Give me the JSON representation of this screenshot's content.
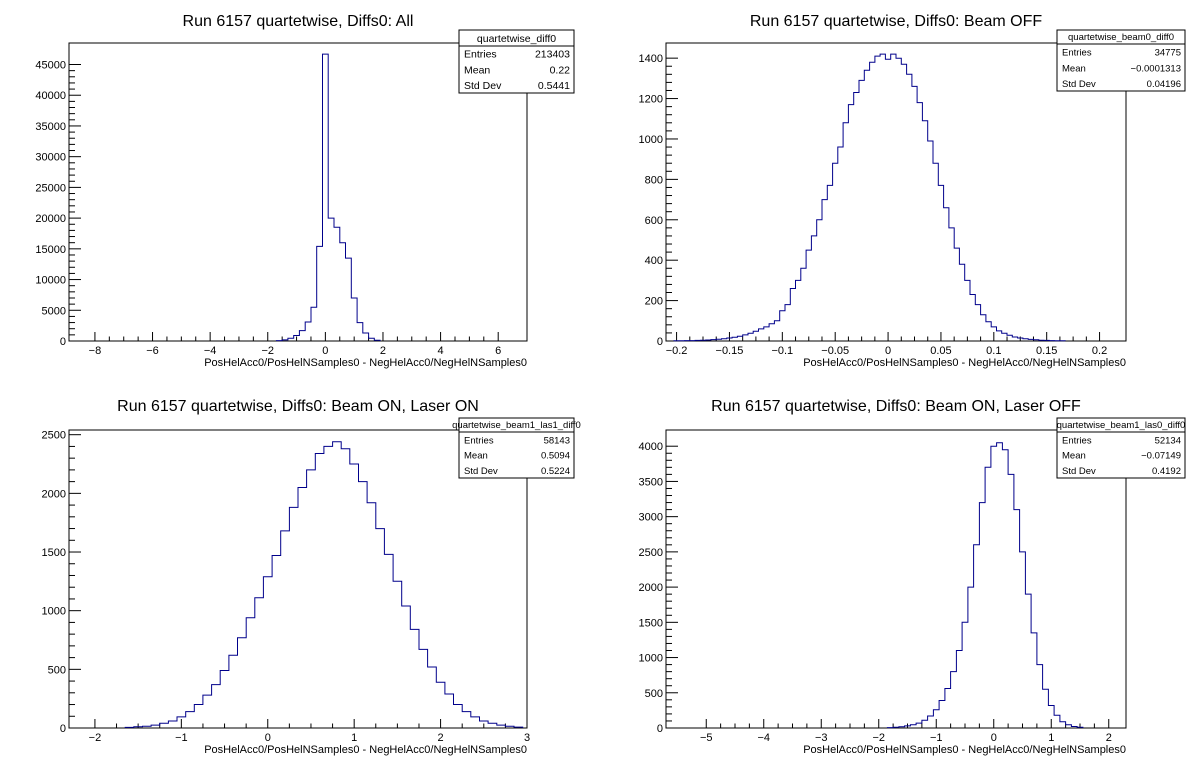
{
  "chart_data": [
    {
      "type": "histogram",
      "title": "Run 6157 quartetwise, Diffs0: All",
      "xlabel": "PosHelAcc0/PosHelNSamples0 - NegHelAcc0/NegHelNSamples0",
      "ylabel": "",
      "xlim": [
        -8.9,
        7.0
      ],
      "ylim": [
        0,
        48500
      ],
      "xticks": [
        -8,
        -6,
        -4,
        -2,
        0,
        2,
        4,
        6
      ],
      "yticks": [
        0,
        5000,
        10000,
        15000,
        20000,
        25000,
        30000,
        35000,
        40000,
        45000
      ],
      "stats": {
        "name": "quartetwise_diff0",
        "entries": "213403",
        "mean": "0.22",
        "std_dev": "0.5441"
      },
      "bins": [
        [
          -1.6,
          60
        ],
        [
          -1.4,
          180
        ],
        [
          -1.2,
          450
        ],
        [
          -1.0,
          900
        ],
        [
          -0.8,
          1700
        ],
        [
          -0.6,
          3100
        ],
        [
          -0.4,
          5500
        ],
        [
          -0.2,
          15400
        ],
        [
          0.0,
          46700
        ],
        [
          0.2,
          20000
        ],
        [
          0.4,
          18500
        ],
        [
          0.6,
          16000
        ],
        [
          0.8,
          13500
        ],
        [
          1.0,
          7000
        ],
        [
          1.2,
          3000
        ],
        [
          1.4,
          1300
        ],
        [
          1.6,
          450
        ],
        [
          1.8,
          120
        ]
      ],
      "bin_width": 0.2
    },
    {
      "type": "histogram",
      "title": "Run 6157 quartetwise, Diffs0: Beam OFF",
      "xlabel": "PosHelAcc0/PosHelNSamples0 - NegHelAcc0/NegHelNSamples0",
      "ylabel": "",
      "xlim": [
        -0.21,
        0.225
      ],
      "ylim": [
        0,
        1475
      ],
      "xticks": [
        -0.2,
        -0.15,
        -0.1,
        -0.05,
        0,
        0.05,
        0.1,
        0.15,
        0.2
      ],
      "yticks": [
        0,
        200,
        400,
        600,
        800,
        1000,
        1200,
        1400
      ],
      "stats": {
        "name": "quartetwise_beam0_diff0",
        "entries": "34775",
        "mean": "−0.0001313",
        "std_dev": "0.04196"
      },
      "bins": [
        [
          -0.2,
          1
        ],
        [
          -0.195,
          1
        ],
        [
          -0.19,
          2
        ],
        [
          -0.185,
          2
        ],
        [
          -0.18,
          3
        ],
        [
          -0.175,
          4
        ],
        [
          -0.17,
          5
        ],
        [
          -0.165,
          7
        ],
        [
          -0.16,
          9
        ],
        [
          -0.155,
          11
        ],
        [
          -0.15,
          15
        ],
        [
          -0.145,
          19
        ],
        [
          -0.14,
          24
        ],
        [
          -0.135,
          30
        ],
        [
          -0.13,
          38
        ],
        [
          -0.125,
          48
        ],
        [
          -0.12,
          60
        ],
        [
          -0.115,
          70
        ],
        [
          -0.11,
          85
        ],
        [
          -0.105,
          100
        ],
        [
          -0.1,
          150
        ],
        [
          -0.095,
          180
        ],
        [
          -0.09,
          260
        ],
        [
          -0.085,
          300
        ],
        [
          -0.08,
          360
        ],
        [
          -0.075,
          450
        ],
        [
          -0.07,
          520
        ],
        [
          -0.065,
          600
        ],
        [
          -0.06,
          700
        ],
        [
          -0.055,
          770
        ],
        [
          -0.05,
          880
        ],
        [
          -0.045,
          960
        ],
        [
          -0.04,
          1080
        ],
        [
          -0.035,
          1170
        ],
        [
          -0.03,
          1230
        ],
        [
          -0.025,
          1290
        ],
        [
          -0.02,
          1340
        ],
        [
          -0.015,
          1380
        ],
        [
          -0.01,
          1410
        ],
        [
          -0.005,
          1420
        ],
        [
          0.0,
          1395
        ],
        [
          0.005,
          1420
        ],
        [
          0.01,
          1400
        ],
        [
          0.015,
          1370
        ],
        [
          0.02,
          1320
        ],
        [
          0.025,
          1260
        ],
        [
          0.03,
          1180
        ],
        [
          0.035,
          1090
        ],
        [
          0.04,
          990
        ],
        [
          0.045,
          880
        ],
        [
          0.05,
          770
        ],
        [
          0.055,
          660
        ],
        [
          0.06,
          560
        ],
        [
          0.065,
          460
        ],
        [
          0.07,
          380
        ],
        [
          0.075,
          300
        ],
        [
          0.08,
          230
        ],
        [
          0.085,
          180
        ],
        [
          0.09,
          130
        ],
        [
          0.095,
          95
        ],
        [
          0.1,
          70
        ],
        [
          0.105,
          50
        ],
        [
          0.11,
          38
        ],
        [
          0.115,
          28
        ],
        [
          0.12,
          20
        ],
        [
          0.125,
          15
        ],
        [
          0.13,
          11
        ],
        [
          0.135,
          8
        ],
        [
          0.14,
          6
        ],
        [
          0.145,
          4
        ],
        [
          0.15,
          3
        ],
        [
          0.155,
          2
        ],
        [
          0.16,
          1
        ],
        [
          0.165,
          1
        ]
      ],
      "bin_width": 0.005
    },
    {
      "type": "histogram",
      "title": "Run 6157 quartetwise, Diffs0: Beam ON, Laser ON",
      "xlabel": "PosHelAcc0/PosHelNSamples0 - NegHelAcc0/NegHelNSamples0",
      "ylabel": "",
      "xlim": [
        -2.3,
        3.0
      ],
      "ylim": [
        0,
        2540
      ],
      "xticks": [
        -2,
        -1,
        0,
        1,
        2,
        3
      ],
      "yticks": [
        0,
        500,
        1000,
        1500,
        2000,
        2500
      ],
      "stats": {
        "name": "quartetwise_beam1_las1_diff0",
        "entries": "58143",
        "mean": "0.5094",
        "std_dev": "0.5224"
      },
      "bins": [
        [
          -1.6,
          5
        ],
        [
          -1.5,
          10
        ],
        [
          -1.4,
          15
        ],
        [
          -1.3,
          25
        ],
        [
          -1.2,
          40
        ],
        [
          -1.1,
          60
        ],
        [
          -1.0,
          95
        ],
        [
          -0.9,
          140
        ],
        [
          -0.8,
          200
        ],
        [
          -0.7,
          280
        ],
        [
          -0.6,
          370
        ],
        [
          -0.5,
          490
        ],
        [
          -0.4,
          620
        ],
        [
          -0.3,
          770
        ],
        [
          -0.2,
          940
        ],
        [
          -0.1,
          1110
        ],
        [
          0.0,
          1290
        ],
        [
          0.1,
          1470
        ],
        [
          0.2,
          1680
        ],
        [
          0.3,
          1880
        ],
        [
          0.4,
          2050
        ],
        [
          0.5,
          2200
        ],
        [
          0.6,
          2340
        ],
        [
          0.7,
          2400
        ],
        [
          0.8,
          2440
        ],
        [
          0.9,
          2380
        ],
        [
          1.0,
          2250
        ],
        [
          1.1,
          2100
        ],
        [
          1.2,
          1920
        ],
        [
          1.3,
          1700
        ],
        [
          1.4,
          1480
        ],
        [
          1.5,
          1250
        ],
        [
          1.6,
          1040
        ],
        [
          1.7,
          840
        ],
        [
          1.8,
          670
        ],
        [
          1.9,
          520
        ],
        [
          2.0,
          390
        ],
        [
          2.1,
          290
        ],
        [
          2.2,
          200
        ],
        [
          2.3,
          140
        ],
        [
          2.4,
          95
        ],
        [
          2.5,
          60
        ],
        [
          2.6,
          40
        ],
        [
          2.7,
          25
        ],
        [
          2.8,
          15
        ],
        [
          2.9,
          8
        ]
      ],
      "bin_width": 0.1
    },
    {
      "type": "histogram",
      "title": "Run 6157 quartetwise, Diffs0: Beam ON, Laser OFF",
      "xlabel": "PosHelAcc0/PosHelNSamples0 - NegHelAcc0/NegHelNSamples0",
      "ylabel": "",
      "xlim": [
        -5.7,
        2.3
      ],
      "ylim": [
        0,
        4230
      ],
      "xticks": [
        -5,
        -4,
        -3,
        -2,
        -1,
        0,
        1,
        2
      ],
      "yticks": [
        0,
        500,
        1000,
        1500,
        2000,
        2500,
        3000,
        3500,
        4000
      ],
      "stats": {
        "name": "quartetwise_beam1_las0_diff0",
        "entries": "52134",
        "mean": "−0.07149",
        "std_dev": "0.4192"
      },
      "bins": [
        [
          -1.8,
          5
        ],
        [
          -1.7,
          10
        ],
        [
          -1.6,
          18
        ],
        [
          -1.5,
          30
        ],
        [
          -1.4,
          45
        ],
        [
          -1.3,
          70
        ],
        [
          -1.2,
          110
        ],
        [
          -1.1,
          170
        ],
        [
          -1.0,
          260
        ],
        [
          -0.9,
          390
        ],
        [
          -0.8,
          560
        ],
        [
          -0.7,
          800
        ],
        [
          -0.6,
          1100
        ],
        [
          -0.5,
          1500
        ],
        [
          -0.4,
          2000
        ],
        [
          -0.3,
          2600
        ],
        [
          -0.2,
          3200
        ],
        [
          -0.1,
          3700
        ],
        [
          0.0,
          4000
        ],
        [
          0.1,
          4050
        ],
        [
          0.2,
          3950
        ],
        [
          0.3,
          3600
        ],
        [
          0.4,
          3100
        ],
        [
          0.5,
          2500
        ],
        [
          0.6,
          1900
        ],
        [
          0.7,
          1350
        ],
        [
          0.8,
          900
        ],
        [
          0.9,
          550
        ],
        [
          1.0,
          320
        ],
        [
          1.1,
          180
        ],
        [
          1.2,
          90
        ],
        [
          1.3,
          45
        ],
        [
          1.4,
          22
        ],
        [
          1.5,
          10
        ]
      ],
      "bin_width": 0.1
    }
  ]
}
